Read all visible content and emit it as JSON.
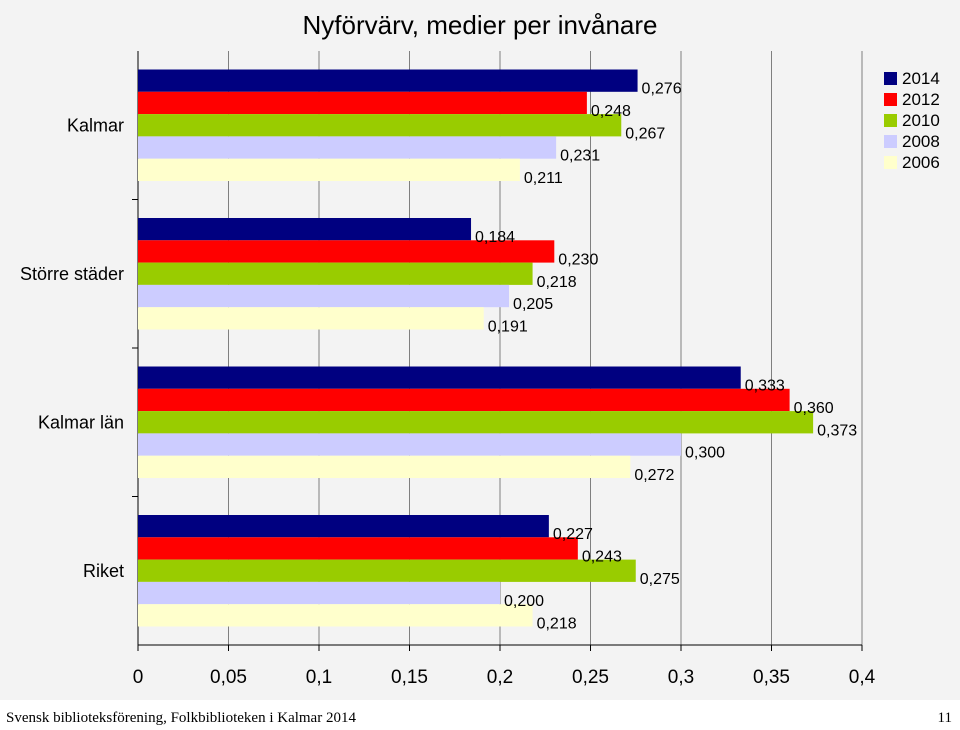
{
  "chart_data": {
    "type": "bar",
    "orientation": "horizontal",
    "title": "Nyförvärv, medier per invånare",
    "categories": [
      "Kalmar",
      "Större städer",
      "Kalmar län",
      "Riket"
    ],
    "series": [
      {
        "name": "2014",
        "color": "#000080",
        "values": [
          0.276,
          0.184,
          0.333,
          0.227
        ],
        "labels": [
          "0,276",
          "0,184",
          "0,333",
          "0,227"
        ]
      },
      {
        "name": "2012",
        "color": "#ff0000",
        "values": [
          0.248,
          0.23,
          0.36,
          0.243
        ],
        "labels": [
          "0,248",
          "0,230",
          "0,360",
          "0,243"
        ]
      },
      {
        "name": "2010",
        "color": "#99cc00",
        "values": [
          0.267,
          0.218,
          0.373,
          0.275
        ],
        "labels": [
          "0,267",
          "0,218",
          "0,373",
          "0,275"
        ]
      },
      {
        "name": "2008",
        "color": "#ccccff",
        "values": [
          0.231,
          0.205,
          0.3,
          0.2
        ],
        "labels": [
          "0,231",
          "0,205",
          "0,300",
          "0,200"
        ]
      },
      {
        "name": "2006",
        "color": "#ffffcc",
        "values": [
          0.211,
          0.191,
          0.272,
          0.218
        ],
        "labels": [
          "0,211",
          "0,191",
          "0,272",
          "0,218"
        ]
      }
    ],
    "xlim": [
      0,
      0.4
    ],
    "xticks": [
      0,
      0.05,
      0.1,
      0.15,
      0.2,
      0.25,
      0.3,
      0.35,
      0.4
    ],
    "xtick_labels": [
      "0",
      "0,05",
      "0,1",
      "0,15",
      "0,2",
      "0,25",
      "0,3",
      "0,35",
      "0,4"
    ],
    "grid": "vertical",
    "legend_position": "top-right"
  },
  "footer": {
    "source": "Svensk biblioteksförening, Folkbiblioteken i Kalmar 2014",
    "page_number": "11"
  }
}
